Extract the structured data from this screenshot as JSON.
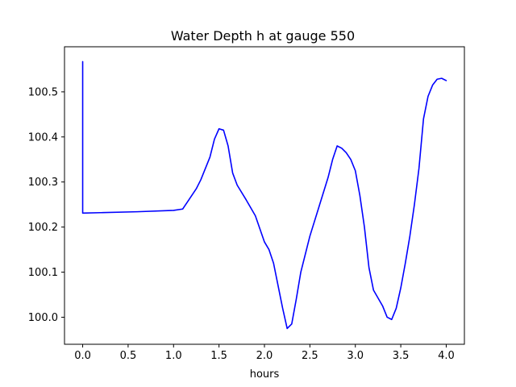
{
  "chart_data": {
    "type": "line",
    "title": "Water Depth h at gauge 550",
    "xlabel": "hours",
    "ylabel": "",
    "xlim": [
      -0.2,
      4.2
    ],
    "ylim": [
      99.94,
      100.6
    ],
    "xticks": [
      0.0,
      0.5,
      1.0,
      1.5,
      2.0,
      2.5,
      3.0,
      3.5,
      4.0
    ],
    "xtick_labels": [
      "0.0",
      "0.5",
      "1.0",
      "1.5",
      "2.0",
      "2.5",
      "3.0",
      "3.5",
      "4.0"
    ],
    "yticks": [
      100.0,
      100.1,
      100.2,
      100.3,
      100.4,
      100.5
    ],
    "ytick_labels": [
      "100.0",
      "100.1",
      "100.2",
      "100.3",
      "100.4",
      "100.5"
    ],
    "grid": false,
    "legend": "none",
    "series": [
      {
        "color": "#0000ff",
        "x": [
          0.0,
          0.0,
          0.2,
          0.6,
          1.0,
          1.1,
          1.15,
          1.25,
          1.3,
          1.35,
          1.4,
          1.45,
          1.5,
          1.55,
          1.6,
          1.65,
          1.7,
          1.8,
          1.9,
          2.0,
          2.05,
          2.1,
          2.15,
          2.2,
          2.25,
          2.3,
          2.35,
          2.4,
          2.5,
          2.6,
          2.7,
          2.75,
          2.8,
          2.85,
          2.9,
          2.95,
          3.0,
          3.05,
          3.1,
          3.15,
          3.2,
          3.3,
          3.35,
          3.4,
          3.45,
          3.5,
          3.55,
          3.6,
          3.65,
          3.7,
          3.75,
          3.8,
          3.85,
          3.9,
          3.95,
          4.0
        ],
        "y": [
          100.567,
          100.231,
          100.232,
          100.234,
          100.237,
          100.24,
          100.255,
          100.285,
          100.305,
          100.33,
          100.355,
          100.395,
          100.418,
          100.415,
          100.38,
          100.32,
          100.293,
          100.26,
          100.225,
          100.167,
          100.15,
          100.12,
          100.07,
          100.02,
          99.975,
          99.985,
          100.04,
          100.1,
          100.18,
          100.245,
          100.31,
          100.35,
          100.38,
          100.375,
          100.365,
          100.35,
          100.325,
          100.27,
          100.2,
          100.11,
          100.06,
          100.025,
          100.0,
          99.995,
          100.02,
          100.065,
          100.12,
          100.18,
          100.25,
          100.33,
          100.44,
          100.49,
          100.515,
          100.528,
          100.53,
          100.525
        ]
      }
    ]
  }
}
